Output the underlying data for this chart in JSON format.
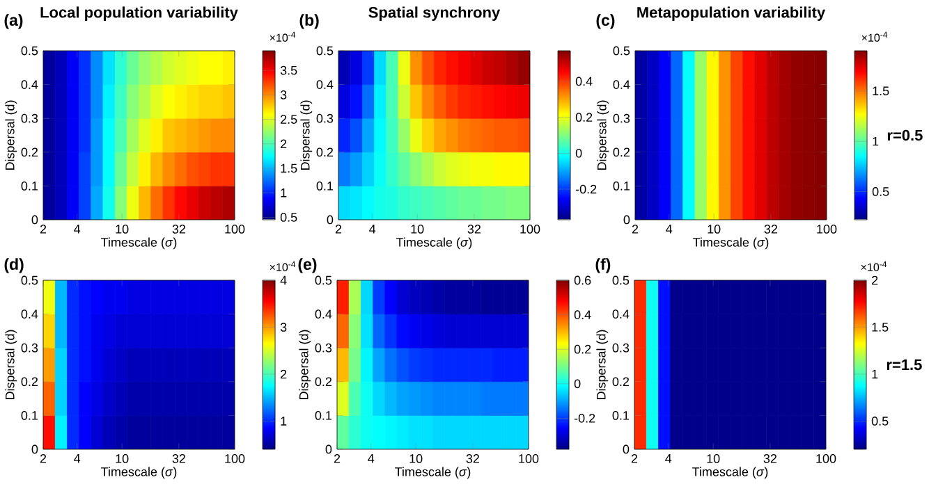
{
  "chart_data": [
    {
      "type": "heatmap",
      "title": "Local population variability",
      "xlabel": "Timescale (*σ*)",
      "ylabel": "Dispersal (d)",
      "clabel": "×10$^{-4}$",
      "annotations": [
        "(a)"
      ],
      "x": [
        2.26,
        2.89,
        3.69,
        4.71,
        6.01,
        7.68,
        9.81,
        12.5,
        16.0,
        20.4,
        26.1,
        33.3,
        42.5,
        54.3,
        69.3,
        88.5
      ],
      "cells": [
        [
          0.55,
          0.65,
          0.85,
          1.05,
          1.35,
          1.65,
          1.9,
          2.1,
          2.25,
          2.35,
          2.45,
          2.5,
          2.55,
          2.6,
          2.6,
          2.65
        ],
        [
          0.55,
          0.65,
          0.85,
          1.05,
          1.35,
          1.7,
          1.95,
          2.2,
          2.35,
          2.5,
          2.6,
          2.65,
          2.7,
          2.75,
          2.75,
          2.8
        ],
        [
          0.55,
          0.65,
          0.85,
          1.05,
          1.4,
          1.75,
          2.0,
          2.3,
          2.5,
          2.65,
          2.8,
          2.85,
          2.9,
          2.95,
          3.0,
          3.0
        ],
        [
          0.55,
          0.65,
          0.85,
          1.1,
          1.4,
          1.75,
          2.1,
          2.4,
          2.65,
          2.85,
          3.0,
          3.1,
          3.2,
          3.25,
          3.3,
          3.3
        ],
        [
          0.55,
          0.65,
          0.85,
          1.1,
          1.45,
          1.8,
          2.2,
          2.55,
          2.85,
          3.1,
          3.3,
          3.45,
          3.55,
          3.65,
          3.7,
          3.75
        ]
      ],
      "clim": [
        0.45,
        3.9
      ],
      "cticks": [
        0.5,
        1,
        1.5,
        2,
        2.5,
        3,
        3.5
      ],
      "xlim": [
        2,
        100
      ],
      "ylim": [
        0,
        0.5
      ],
      "xticks": [
        2,
        4,
        10,
        32,
        100
      ],
      "yticks": [
        0,
        0.1,
        0.2,
        0.3,
        0.4,
        0.5
      ],
      "log": "x"
    },
    {
      "type": "heatmap",
      "title": "Spatial synchrony",
      "xlabel": "Timescale (*σ*)",
      "ylabel": "Dispersal (d)",
      "annotations": [
        "(b)"
      ],
      "x": [
        2.26,
        2.89,
        3.69,
        4.71,
        6.01,
        7.68,
        9.81,
        12.5,
        16.0,
        20.4,
        26.1,
        33.3,
        42.5,
        54.3,
        69.3,
        88.5
      ],
      "cells": [
        [
          -0.32,
          -0.28,
          -0.2,
          -0.05,
          0.05,
          0.2,
          0.32,
          0.38,
          0.42,
          0.44,
          0.46,
          0.48,
          0.5,
          0.51,
          0.53,
          0.55
        ],
        [
          -0.28,
          -0.24,
          -0.15,
          -0.03,
          0.05,
          0.17,
          0.27,
          0.33,
          0.37,
          0.4,
          0.42,
          0.43,
          0.44,
          0.45,
          0.46,
          0.47
        ],
        [
          -0.22,
          -0.18,
          -0.1,
          -0.02,
          0.04,
          0.12,
          0.2,
          0.26,
          0.3,
          0.32,
          0.34,
          0.35,
          0.36,
          0.37,
          0.37,
          0.38
        ],
        [
          -0.14,
          -0.11,
          -0.06,
          -0.01,
          0.03,
          0.07,
          0.11,
          0.14,
          0.17,
          0.19,
          0.2,
          0.21,
          0.21,
          0.22,
          0.22,
          0.22
        ],
        [
          -0.05,
          -0.04,
          -0.02,
          0,
          0.01,
          0.03,
          0.04,
          0.05,
          0.06,
          0.07,
          0.08,
          0.08,
          0.09,
          0.09,
          0.1,
          0.1
        ]
      ],
      "clim": [
        -0.37,
        0.57
      ],
      "cticks": [
        -0.2,
        0,
        0.2,
        0.4
      ],
      "xlim": [
        2,
        100
      ],
      "ylim": [
        0,
        0.5
      ],
      "xticks": [
        2,
        4,
        10,
        32,
        100
      ],
      "yticks": [
        0,
        0.1,
        0.2,
        0.3,
        0.4,
        0.5
      ],
      "log": "x"
    },
    {
      "type": "heatmap",
      "title": "Metapopulation variability",
      "xlabel": "Timescale (*σ*)",
      "ylabel": "Dispersal (d)",
      "clabel": "×10$^{-4}$",
      "annotations": [
        "(c)",
        "r=0.5"
      ],
      "x": [
        2.26,
        2.89,
        3.69,
        4.71,
        6.01,
        7.68,
        9.81,
        12.5,
        16.0,
        20.4,
        26.1,
        33.3,
        42.5,
        54.3,
        69.3,
        88.5
      ],
      "cells": [
        [
          0.28,
          0.33,
          0.42,
          0.6,
          0.85,
          1.1,
          1.28,
          1.45,
          1.58,
          1.67,
          1.74,
          1.8,
          1.84,
          1.87,
          1.88,
          1.89
        ],
        [
          0.28,
          0.33,
          0.42,
          0.6,
          0.85,
          1.1,
          1.28,
          1.45,
          1.58,
          1.67,
          1.74,
          1.8,
          1.84,
          1.87,
          1.88,
          1.89
        ],
        [
          0.28,
          0.33,
          0.42,
          0.6,
          0.85,
          1.1,
          1.28,
          1.45,
          1.58,
          1.67,
          1.74,
          1.8,
          1.84,
          1.87,
          1.88,
          1.89
        ],
        [
          0.28,
          0.33,
          0.42,
          0.6,
          0.85,
          1.1,
          1.28,
          1.45,
          1.58,
          1.67,
          1.74,
          1.8,
          1.84,
          1.87,
          1.88,
          1.89
        ],
        [
          0.28,
          0.33,
          0.42,
          0.6,
          0.85,
          1.1,
          1.28,
          1.45,
          1.58,
          1.67,
          1.74,
          1.8,
          1.84,
          1.87,
          1.88,
          1.89
        ]
      ],
      "clim": [
        0.22,
        1.9
      ],
      "cticks": [
        0.5,
        1,
        1.5
      ],
      "xlim": [
        2,
        100
      ],
      "ylim": [
        0,
        0.5
      ],
      "xticks": [
        2,
        4,
        10,
        32,
        100
      ],
      "yticks": [
        0,
        0.1,
        0.2,
        0.3,
        0.4,
        0.5
      ],
      "log": "x"
    },
    {
      "type": "heatmap",
      "xlabel": "Timescale (*σ*)",
      "ylabel": "Dispersal (d)",
      "clabel": "×10$^{-4}$",
      "annotations": [
        "(d)"
      ],
      "x": [
        2.26,
        2.89,
        3.69,
        4.71,
        6.01,
        7.68,
        9.81,
        12.5,
        16.0,
        20.4,
        26.1,
        33.3,
        42.5,
        54.3,
        69.3,
        88.5
      ],
      "cells": [
        [
          2.6,
          1.5,
          1.0,
          0.9,
          0.85,
          0.8,
          0.8,
          0.75,
          0.75,
          0.75,
          0.75,
          0.75,
          0.75,
          0.75,
          0.75,
          0.75
        ],
        [
          2.8,
          1.5,
          1.0,
          0.9,
          0.8,
          0.75,
          0.7,
          0.7,
          0.7,
          0.7,
          0.7,
          0.7,
          0.7,
          0.7,
          0.7,
          0.7
        ],
        [
          3.0,
          1.6,
          1.0,
          0.9,
          0.8,
          0.7,
          0.65,
          0.6,
          0.6,
          0.6,
          0.6,
          0.6,
          0.6,
          0.6,
          0.6,
          0.6
        ],
        [
          3.2,
          1.6,
          1.0,
          0.85,
          0.75,
          0.65,
          0.6,
          0.55,
          0.55,
          0.55,
          0.55,
          0.55,
          0.55,
          0.55,
          0.55,
          0.55
        ],
        [
          3.5,
          1.7,
          1.0,
          0.85,
          0.7,
          0.6,
          0.55,
          0.5,
          0.5,
          0.5,
          0.5,
          0.5,
          0.5,
          0.5,
          0.5,
          0.5
        ]
      ],
      "clim": [
        0.4,
        4
      ],
      "cticks": [
        1,
        2,
        3,
        4
      ],
      "xlim": [
        2,
        100
      ],
      "ylim": [
        0,
        0.5
      ],
      "xticks": [
        2,
        4,
        10,
        32,
        100
      ],
      "yticks": [
        0,
        0.1,
        0.2,
        0.3,
        0.4,
        0.5
      ],
      "log": "x"
    },
    {
      "type": "heatmap",
      "xlabel": "Timescale (*σ*)",
      "ylabel": "Dispersal (d)",
      "annotations": [
        "(e)"
      ],
      "x": [
        2.26,
        2.89,
        3.69,
        4.71,
        6.01,
        7.68,
        9.81,
        12.5,
        16.0,
        20.4,
        26.1,
        33.3,
        42.5,
        54.3,
        69.3,
        88.5
      ],
      "cells": [
        [
          0.45,
          0.15,
          -0.05,
          -0.2,
          -0.26,
          -0.3,
          -0.32,
          -0.33,
          -0.34,
          -0.35,
          -0.35,
          -0.35,
          -0.36,
          -0.36,
          -0.36,
          -0.36
        ],
        [
          0.38,
          0.12,
          -0.04,
          -0.16,
          -0.21,
          -0.25,
          -0.27,
          -0.28,
          -0.29,
          -0.3,
          -0.3,
          -0.3,
          -0.3,
          -0.3,
          -0.3,
          -0.3
        ],
        [
          0.3,
          0.1,
          -0.02,
          -0.1,
          -0.15,
          -0.18,
          -0.2,
          -0.21,
          -0.22,
          -0.22,
          -0.22,
          -0.22,
          -0.22,
          -0.23,
          -0.23,
          -0.23
        ],
        [
          0.2,
          0.06,
          0,
          -0.05,
          -0.08,
          -0.1,
          -0.11,
          -0.12,
          -0.13,
          -0.13,
          -0.13,
          -0.13,
          -0.14,
          -0.14,
          -0.14,
          -0.14
        ],
        [
          0.08,
          0.03,
          0,
          -0.01,
          -0.02,
          -0.03,
          -0.04,
          -0.04,
          -0.05,
          -0.05,
          -0.05,
          -0.05,
          -0.05,
          -0.05,
          -0.05,
          -0.05
        ]
      ],
      "clim": [
        -0.38,
        0.6
      ],
      "cticks": [
        -0.2,
        0,
        0.2,
        0.4,
        0.6
      ],
      "xlim": [
        2,
        100
      ],
      "ylim": [
        0,
        0.5
      ],
      "xticks": [
        2,
        4,
        10,
        32,
        100
      ],
      "yticks": [
        0,
        0.1,
        0.2,
        0.3,
        0.4,
        0.5
      ],
      "log": "x"
    },
    {
      "type": "heatmap",
      "xlabel": "Timescale (*σ*)",
      "ylabel": "Dispersal (d)",
      "clabel": "×10$^{-4}$",
      "annotations": [
        "(f)",
        "r=1.5"
      ],
      "x": [
        2.26,
        2.89,
        3.69,
        4.71,
        6.01,
        7.68,
        9.81,
        12.5,
        16.0,
        20.4,
        26.1,
        33.3,
        42.5,
        54.3,
        69.3,
        88.5
      ],
      "cells": [
        [
          1.7,
          0.9,
          0.45,
          0.22,
          0.22,
          0.22,
          0.22,
          0.22,
          0.22,
          0.22,
          0.22,
          0.22,
          0.22,
          0.22,
          0.22,
          0.22
        ],
        [
          1.7,
          0.9,
          0.45,
          0.22,
          0.22,
          0.22,
          0.22,
          0.22,
          0.22,
          0.22,
          0.22,
          0.22,
          0.22,
          0.22,
          0.22,
          0.22
        ],
        [
          1.7,
          0.9,
          0.45,
          0.22,
          0.22,
          0.22,
          0.22,
          0.22,
          0.22,
          0.22,
          0.22,
          0.22,
          0.22,
          0.22,
          0.22,
          0.22
        ],
        [
          1.7,
          0.9,
          0.45,
          0.22,
          0.22,
          0.22,
          0.22,
          0.22,
          0.22,
          0.22,
          0.22,
          0.22,
          0.22,
          0.22,
          0.22,
          0.22
        ],
        [
          1.7,
          0.9,
          0.45,
          0.22,
          0.22,
          0.22,
          0.22,
          0.22,
          0.22,
          0.22,
          0.22,
          0.22,
          0.22,
          0.22,
          0.22,
          0.22
        ]
      ],
      "clim": [
        0.2,
        2
      ],
      "cticks": [
        0.5,
        1,
        1.5,
        2
      ],
      "xlim": [
        2,
        100
      ],
      "ylim": [
        0,
        0.5
      ],
      "xticks": [
        2,
        4,
        10,
        32,
        100
      ],
      "yticks": [
        0,
        0.1,
        0.2,
        0.3,
        0.4,
        0.5
      ],
      "log": "x"
    }
  ]
}
